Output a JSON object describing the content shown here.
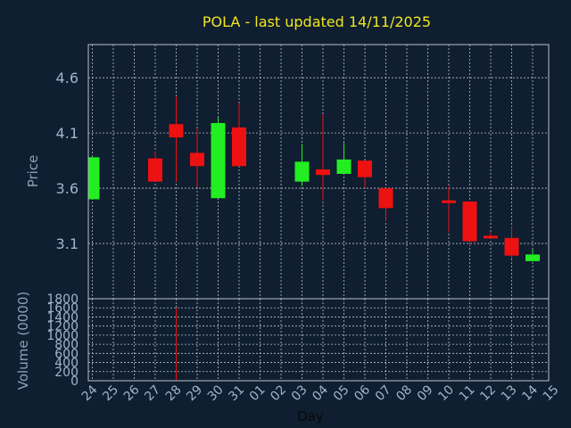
{
  "chart_data": {
    "type": "candlestick",
    "title": "POLA - last updated 14/11/2025",
    "ylabel": "Price",
    "volume_label": "Volume (0000)",
    "xlabel": "Day",
    "price_ticks": [
      "4.6",
      "4.1",
      "3.6",
      "3.1"
    ],
    "volume_ticks": [
      "1800",
      "1600",
      "1400",
      "1200",
      "1000",
      "800",
      "600",
      "400",
      "200",
      "0"
    ],
    "day_labels": [
      "24",
      "25",
      "26",
      "27",
      "28",
      "29",
      "30",
      "31",
      "01",
      "02",
      "03",
      "04",
      "05",
      "06",
      "07",
      "08",
      "09",
      "10",
      "11",
      "12",
      "13",
      "14",
      "15"
    ],
    "ylim_price": [
      2.6,
      4.9
    ],
    "ylim_volume": [
      0,
      1800
    ],
    "grid": true,
    "candles": [
      {
        "day": "24",
        "open": 3.5,
        "close": 3.88,
        "high": 3.88,
        "low": 3.5
      },
      {
        "day": "27",
        "open": 3.87,
        "close": 3.66,
        "high": 3.93,
        "low": 3.66
      },
      {
        "day": "28",
        "open": 4.18,
        "close": 4.06,
        "high": 4.43,
        "low": 3.66
      },
      {
        "day": "29",
        "open": 3.92,
        "close": 3.8,
        "high": 4.14,
        "low": 3.61
      },
      {
        "day": "30",
        "open": 3.51,
        "close": 4.19,
        "high": 4.24,
        "low": 3.51
      },
      {
        "day": "31",
        "open": 4.15,
        "close": 3.8,
        "high": 4.37,
        "low": 3.8
      },
      {
        "day": "03",
        "open": 3.66,
        "close": 3.84,
        "high": 4.0,
        "low": 3.62
      },
      {
        "day": "04",
        "open": 3.77,
        "close": 3.72,
        "high": 4.27,
        "low": 3.49
      },
      {
        "day": "05",
        "open": 3.73,
        "close": 3.86,
        "high": 4.01,
        "low": 3.73
      },
      {
        "day": "06",
        "open": 3.85,
        "close": 3.7,
        "high": 3.85,
        "low": 3.6
      },
      {
        "day": "07",
        "open": 3.6,
        "close": 3.42,
        "high": 3.6,
        "low": 3.3
      },
      {
        "day": "10",
        "open": 3.49,
        "close": 3.47,
        "high": 3.62,
        "low": 3.2
      },
      {
        "day": "11",
        "open": 3.48,
        "close": 3.12,
        "high": 3.48,
        "low": 3.08
      },
      {
        "day": "12",
        "open": 3.17,
        "close": 3.15,
        "high": 3.2,
        "low": 3.15
      },
      {
        "day": "13",
        "open": 3.15,
        "close": 2.99,
        "high": 3.25,
        "low": 2.96
      },
      {
        "day": "14",
        "open": 2.94,
        "close": 3.0,
        "high": 3.05,
        "low": 2.94
      }
    ],
    "volumes": [
      {
        "day": "28",
        "value": 1600
      }
    ],
    "colors": {
      "background": "#0f1e30",
      "up": "#22ee22",
      "down": "#ee1111",
      "grid": "#b8c2cc",
      "title": "#f0e620",
      "ticks": "#9fb4cc"
    }
  }
}
